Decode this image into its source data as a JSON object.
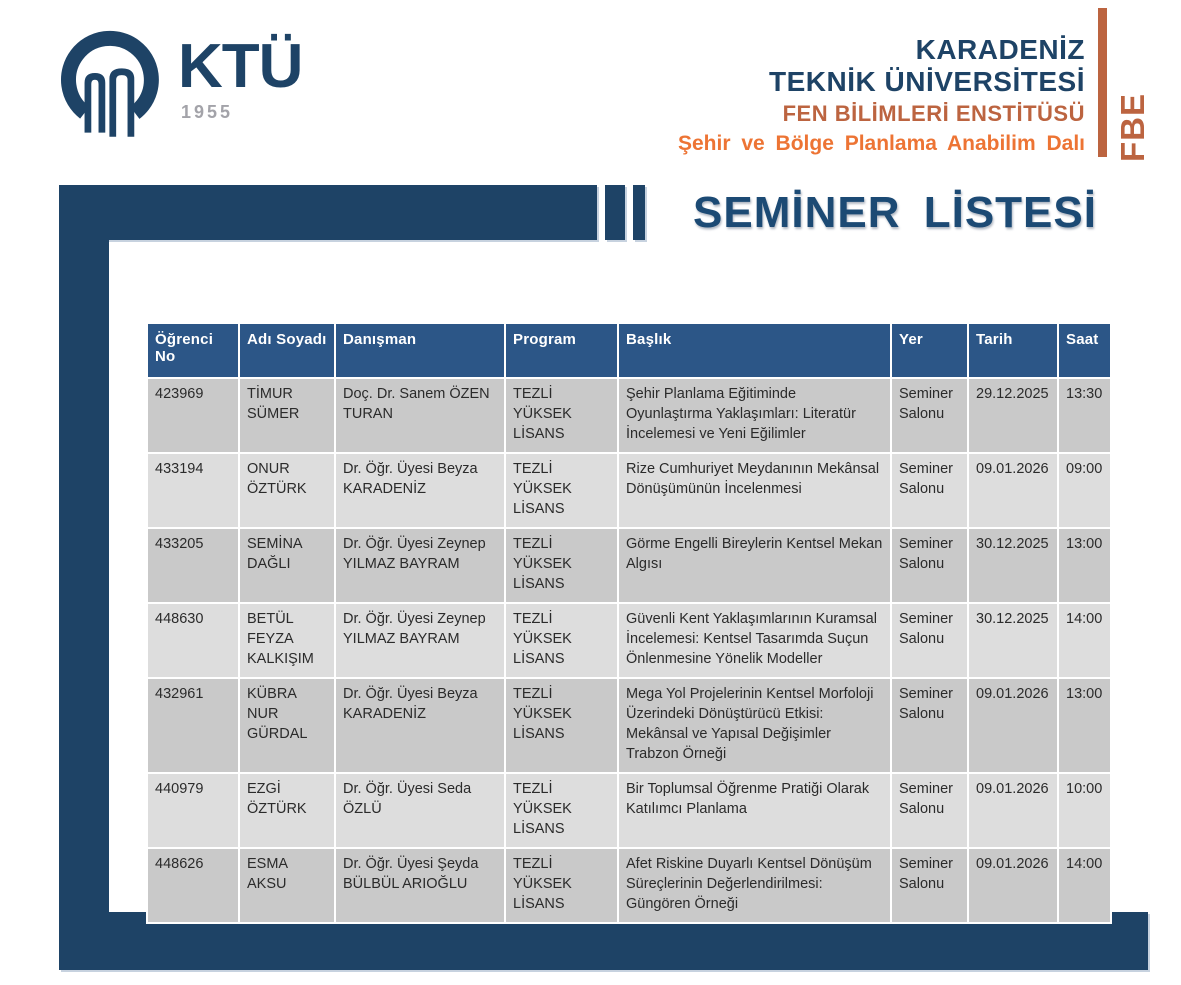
{
  "logo": {
    "brand": "KTÜ",
    "year": "1955"
  },
  "header": {
    "university_line1": "KARADENİZ",
    "university_line2": "TEKNİK ÜNİVERSİTESİ",
    "institute": "FEN BİLİMLERİ ENSTİTÜSÜ",
    "department": "Şehir ve Bölge Planlama Anabilim Dalı",
    "side_label": "FBE"
  },
  "page_title": "SEMİNER LİSTESİ",
  "colors": {
    "navy_dark": "#1e4366",
    "navy_title": "#1c4a74",
    "navy_header": "#2c5687",
    "terracotta": "#bc6440",
    "orange_bright": "#ed7434",
    "row_dark": "#c9c9c9",
    "row_light": "#dddddd",
    "year_gray": "#a3a3a9"
  },
  "table": {
    "columns": [
      "Öğrenci No",
      "Adı Soyadı",
      "Danışman",
      "Program",
      "Başlık",
      "Yer",
      "Tarih",
      "Saat"
    ],
    "rows": [
      {
        "ogrenci_no": "423969",
        "adi_soyadi": "TİMUR SÜMER",
        "danisman": "Doç. Dr. Sanem ÖZEN TURAN",
        "program": "TEZLİ YÜKSEK LİSANS",
        "baslik": "Şehir Planlama Eğitiminde Oyunlaştırma Yaklaşımları: Literatür İncelemesi ve Yeni Eğilimler",
        "yer": "Seminer Salonu",
        "tarih": "29.12.2025",
        "saat": "13:30"
      },
      {
        "ogrenci_no": "433194",
        "adi_soyadi": "ONUR ÖZTÜRK",
        "danisman": "Dr. Öğr. Üyesi Beyza KARADENİZ",
        "program": "TEZLİ YÜKSEK LİSANS",
        "baslik": "Rize Cumhuriyet Meydanının Mekânsal Dönüşümünün İncelenmesi",
        "yer": "Seminer Salonu",
        "tarih": "09.01.2026",
        "saat": "09:00"
      },
      {
        "ogrenci_no": "433205",
        "adi_soyadi": "SEMİNA DAĞLI",
        "danisman": "Dr. Öğr. Üyesi Zeynep YILMAZ BAYRAM",
        "program": "TEZLİ YÜKSEK LİSANS",
        "baslik": "Görme Engelli Bireylerin Kentsel Mekan Algısı",
        "yer": "Seminer Salonu",
        "tarih": "30.12.2025",
        "saat": "13:00"
      },
      {
        "ogrenci_no": "448630",
        "adi_soyadi": "BETÜL FEYZA KALKIŞIM",
        "danisman": "Dr. Öğr. Üyesi Zeynep YILMAZ BAYRAM",
        "program": "TEZLİ YÜKSEK LİSANS",
        "baslik": "Güvenli Kent Yaklaşımlarının Kuramsal İncelemesi: Kentsel Tasarımda Suçun Önlenmesine Yönelik Modeller",
        "yer": "Seminer Salonu",
        "tarih": "30.12.2025",
        "saat": "14:00"
      },
      {
        "ogrenci_no": "432961",
        "adi_soyadi": "KÜBRA NUR GÜRDAL",
        "danisman": "Dr. Öğr. Üyesi Beyza KARADENİZ",
        "program": "TEZLİ YÜKSEK LİSANS",
        "baslik": "Mega Yol Projelerinin Kentsel Morfoloji Üzerindeki Dönüştürücü Etkisi: Mekânsal ve Yapısal Değişimler Trabzon Örneği",
        "yer": "Seminer Salonu",
        "tarih": "09.01.2026",
        "saat": "13:00"
      },
      {
        "ogrenci_no": "440979",
        "adi_soyadi": "EZGİ ÖZTÜRK",
        "danisman": "Dr. Öğr. Üyesi Seda ÖZLÜ",
        "program": "TEZLİ YÜKSEK LİSANS",
        "baslik": "Bir Toplumsal Öğrenme Pratiği Olarak Katılımcı Planlama",
        "yer": "Seminer Salonu",
        "tarih": "09.01.2026",
        "saat": "10:00"
      },
      {
        "ogrenci_no": "448626",
        "adi_soyadi": "ESMA AKSU",
        "danisman": "Dr. Öğr. Üyesi Şeyda BÜLBÜL ARIOĞLU",
        "program": "TEZLİ YÜKSEK LİSANS",
        "baslik": "Afet Riskine Duyarlı Kentsel Dönüşüm Süreçlerinin Değerlendirilmesi: Güngören Örneği",
        "yer": "Seminer Salonu",
        "tarih": "09.01.2026",
        "saat": "14:00"
      }
    ]
  }
}
